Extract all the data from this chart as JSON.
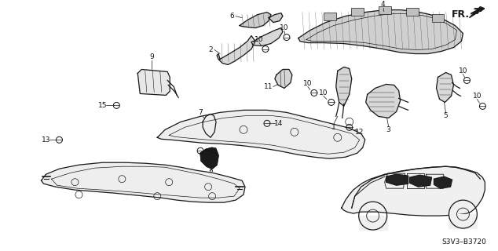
{
  "bg_color": "#ffffff",
  "fig_width": 6.34,
  "fig_height": 3.2,
  "dpi": 100,
  "diagram_code": "S3V3–B3720",
  "fr_label": "FR.",
  "line_color": "#1a1a1a",
  "label_fontsize": 6.5,
  "label_color": "#111111"
}
